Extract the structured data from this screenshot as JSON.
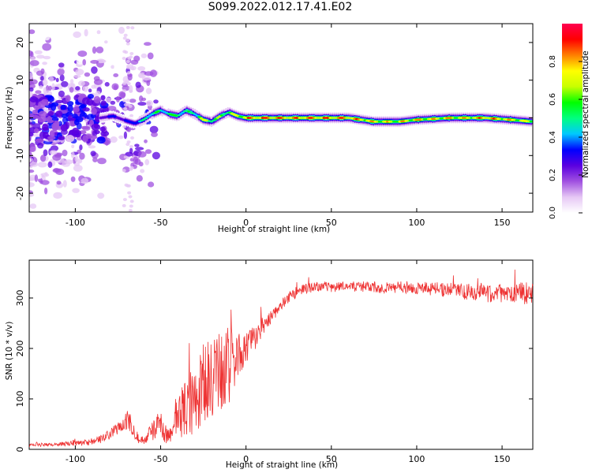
{
  "title": "S099.2022.012.17.41.E02",
  "chart_data": [
    {
      "type": "heatmap",
      "xlabel": "Height of straight line (km)",
      "ylabel": "Frequency (Hz)",
      "xlim": [
        -127,
        168
      ],
      "ylim": [
        -25,
        25
      ],
      "xticks": [
        -100,
        -50,
        0,
        50,
        100,
        150
      ],
      "yticks": [
        -20,
        -10,
        0,
        10,
        20
      ],
      "colorbar": {
        "label": "Normalized spectral amplitude",
        "range": [
          0,
          1
        ],
        "ticks": [
          "0.0",
          "0.2",
          "0.4",
          "0.6",
          "0.8"
        ],
        "colormap": [
          "#ffffff",
          "#e6c8f5",
          "#a050e0",
          "#5a00e0",
          "#0000ff",
          "#00c8ff",
          "#00ff80",
          "#00ff00",
          "#c8ff00",
          "#ffff00",
          "#ff8000",
          "#ff0000",
          "#ff0050"
        ]
      },
      "ridge": {
        "x": [
          -85,
          -78,
          -72,
          -65,
          -60,
          -55,
          -50,
          -45,
          -40,
          -35,
          -30,
          -25,
          -20,
          -15,
          -10,
          -5,
          0,
          10,
          20,
          40,
          60,
          75,
          90,
          100,
          120,
          140,
          155,
          168
        ],
        "freq": [
          0,
          0.5,
          -0.5,
          -1.5,
          -0.5,
          1,
          2,
          1,
          0.5,
          2,
          1,
          -0.5,
          -1,
          0.5,
          1.5,
          0.5,
          0,
          0,
          0,
          0,
          0,
          -1,
          -1,
          -0.5,
          0,
          0,
          -0.5,
          -1
        ],
        "amplitude": [
          0.3,
          0.35,
          0.3,
          0.45,
          0.5,
          0.6,
          0.55,
          0.6,
          0.65,
          0.55,
          0.6,
          0.75,
          0.7,
          0.65,
          0.7,
          0.8,
          0.9,
          0.95,
          0.9,
          0.95,
          0.9,
          0.85,
          0.8,
          0.85,
          0.85,
          0.9,
          0.85,
          0.75
        ]
      }
    },
    {
      "type": "line",
      "xlabel": "Height of straight line (km)",
      "ylabel": "SNR (10 * v/v)",
      "xlim": [
        -127,
        168
      ],
      "ylim": [
        0,
        375
      ],
      "xticks": [
        -100,
        -50,
        0,
        50,
        100,
        150
      ],
      "yticks": [
        0,
        100,
        200,
        300
      ],
      "series": [
        {
          "color": "#ee3333",
          "x": [
            -127,
            -110,
            -100,
            -90,
            -85,
            -80,
            -75,
            -72,
            -70,
            -68,
            -65,
            -62,
            -60,
            -55,
            -50,
            -48,
            -45,
            -42,
            -40,
            -35,
            -30,
            -25,
            -20,
            -15,
            -10,
            -5,
            0,
            5,
            10,
            15,
            20,
            25,
            30,
            35,
            40,
            50,
            60,
            70,
            80,
            90,
            100,
            110,
            120,
            130,
            140,
            150,
            160,
            168
          ],
          "y": [
            8,
            10,
            12,
            14,
            20,
            30,
            42,
            48,
            55,
            60,
            35,
            15,
            20,
            35,
            55,
            30,
            30,
            55,
            65,
            85,
            100,
            120,
            140,
            150,
            165,
            185,
            200,
            220,
            245,
            265,
            285,
            300,
            312,
            318,
            322,
            322,
            323,
            322,
            320,
            322,
            320,
            318,
            315,
            312,
            310,
            308,
            310,
            312
          ],
          "spike_amp": [
            3,
            4,
            5,
            6,
            8,
            10,
            12,
            15,
            18,
            25,
            15,
            8,
            10,
            18,
            25,
            18,
            18,
            30,
            45,
            60,
            75,
            90,
            85,
            90,
            80,
            45,
            30,
            25,
            20,
            15,
            12,
            10,
            10,
            10,
            10,
            10,
            10,
            11,
            11,
            12,
            12,
            14,
            15,
            16,
            18,
            20,
            22,
            25
          ]
        }
      ]
    }
  ]
}
